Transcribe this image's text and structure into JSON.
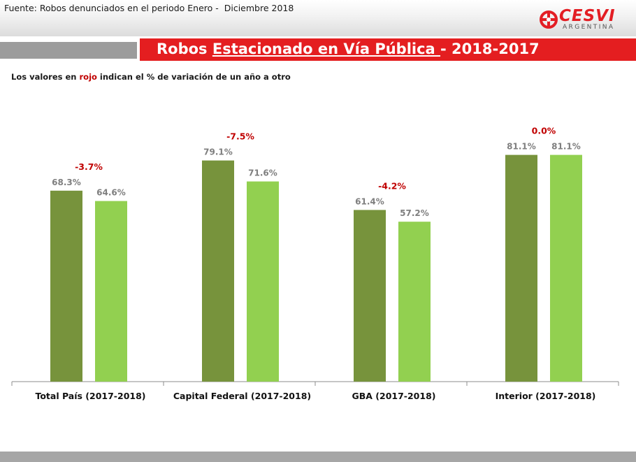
{
  "header": {
    "source_note": "Fuente: Robos denunciados en el periodo Enero -  Diciembre 2018",
    "logo_text": "CESVI",
    "logo_subtext": "ARGENTINA"
  },
  "banner": {
    "title_part1": "Robos ",
    "title_part2": "Estacionado en Vía Pública ",
    "title_part3": "- 2018-2017"
  },
  "legend_note": {
    "before": "Los valores en ",
    "highlight": "rojo",
    "after": " indican el % de variación de un año a otro"
  },
  "colors": {
    "bar_2017": "#77933c",
    "bar_2018": "#92d050",
    "variation": "#c00000",
    "value_label": "#7f7f7f",
    "accent_red": "#e41e20"
  },
  "chart_data": {
    "type": "bar",
    "categories": [
      "Total País (2017-2018)",
      "Capital Federal (2017-2018)",
      "GBA (2017-2018)",
      "Interior (2017-2018)"
    ],
    "series": [
      {
        "values": [
          68.3,
          79.1,
          61.4,
          81.1
        ],
        "labels": [
          "68.3%",
          "79.1%",
          "61.4%",
          "81.1%"
        ]
      },
      {
        "values": [
          64.6,
          71.6,
          57.2,
          81.1
        ],
        "labels": [
          "64.6%",
          "71.6%",
          "57.2%",
          "81.1%"
        ]
      }
    ],
    "variation_labels": [
      "-3.7%",
      "-7.5%",
      "-4.2%",
      "0.0%"
    ],
    "ylim": [
      0,
      100
    ],
    "grid": false,
    "legend": "none"
  }
}
